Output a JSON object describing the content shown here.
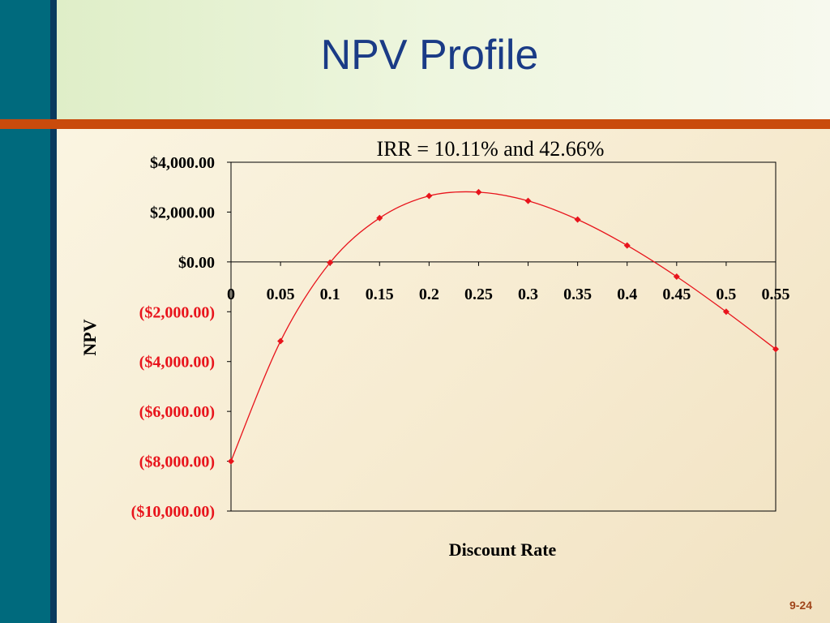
{
  "slide": {
    "title": "NPV Profile",
    "number": "9-24"
  },
  "chart_data": {
    "type": "line",
    "title": "IRR = 10.11% and 42.66%",
    "xlabel": "Discount Rate",
    "ylabel": "NPV",
    "x": [
      0,
      0.05,
      0.1,
      0.15,
      0.2,
      0.25,
      0.3,
      0.35,
      0.4,
      0.45,
      0.5,
      0.55
    ],
    "x_tick_labels": [
      "0",
      "0.05",
      "0.1",
      "0.15",
      "0.2",
      "0.25",
      "0.3",
      "0.35",
      "0.4",
      "0.45",
      "0.5",
      "0.55"
    ],
    "y_ticks": [
      4000,
      2000,
      0,
      -2000,
      -4000,
      -6000,
      -8000,
      -10000
    ],
    "y_tick_labels": [
      "$4,000.00",
      "$2,000.00",
      "$0.00",
      "($2,000.00)",
      "($4,000.00)",
      "($6,000.00)",
      "($8,000.00)",
      "($10,000.00)"
    ],
    "ylim": [
      -10000,
      4000
    ],
    "xlim": [
      0,
      0.55
    ],
    "grid": false,
    "series": [
      {
        "values": [
          -8000,
          -3180,
          -30,
          1760,
          2650,
          2800,
          2450,
          1700,
          660,
          -590,
          -2000,
          -3500
        ],
        "color": "#e8141c"
      }
    ],
    "colors": {
      "negative_tick": "#e8141c",
      "positive_tick": "#000000",
      "line": "#e8141c"
    }
  }
}
